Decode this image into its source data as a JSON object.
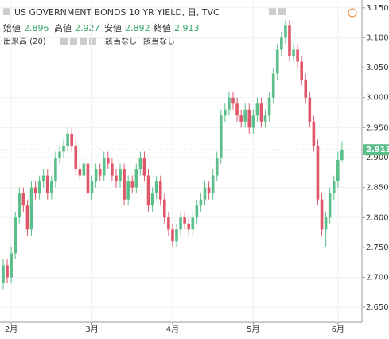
{
  "chart_data": {
    "type": "candlestick",
    "title": "US GOVERNMENT BONDS 10 YR YIELD, 日, TVC",
    "ohlc_labels": {
      "open": "始値",
      "high": "高値",
      "low": "安値",
      "close": "終値"
    },
    "volume_label": "出来高 (20)",
    "na_labels": [
      "該当なし",
      "該当なし"
    ],
    "up_color": "#5cbf8a",
    "down_color": "#e0576a",
    "open": [
      2.69,
      2.72,
      2.7,
      2.74,
      2.8,
      2.84,
      2.82,
      2.78,
      2.85,
      2.84,
      2.86,
      2.87,
      2.84,
      2.86,
      2.9,
      2.91,
      2.92,
      2.94,
      2.92,
      2.88,
      2.87,
      2.89,
      2.84,
      2.86,
      2.88,
      2.87,
      2.9,
      2.89,
      2.87,
      2.86,
      2.88,
      2.83,
      2.86,
      2.85,
      2.88,
      2.9,
      2.87,
      2.82,
      2.84,
      2.86,
      2.83,
      2.8,
      2.78,
      2.76,
      2.78,
      2.8,
      2.79,
      2.78,
      2.8,
      2.82,
      2.83,
      2.85,
      2.84,
      2.87,
      2.9,
      2.97,
      2.98,
      3.0,
      2.99,
      2.97,
      2.96,
      2.98,
      2.95,
      2.97,
      2.99,
      2.96,
      2.97,
      3.0,
      3.04,
      3.08,
      3.1,
      3.12,
      3.07,
      3.08,
      3.06,
      3.03,
      3.0,
      2.96,
      2.92,
      2.83,
      2.78,
      2.8,
      2.84,
      2.86,
      2.896
    ],
    "high": [
      2.73,
      2.73,
      2.75,
      2.81,
      2.85,
      2.85,
      2.83,
      2.86,
      2.86,
      2.87,
      2.88,
      2.88,
      2.87,
      2.91,
      2.92,
      2.93,
      2.95,
      2.95,
      2.93,
      2.89,
      2.9,
      2.9,
      2.87,
      2.89,
      2.89,
      2.91,
      2.91,
      2.9,
      2.88,
      2.89,
      2.89,
      2.87,
      2.87,
      2.89,
      2.91,
      2.91,
      2.88,
      2.85,
      2.87,
      2.87,
      2.84,
      2.81,
      2.79,
      2.79,
      2.81,
      2.81,
      2.8,
      2.81,
      2.83,
      2.84,
      2.86,
      2.86,
      2.88,
      2.91,
      2.98,
      2.99,
      3.01,
      3.01,
      3.0,
      2.98,
      2.99,
      2.99,
      2.98,
      3.0,
      3.0,
      2.98,
      3.01,
      3.05,
      3.09,
      3.11,
      3.13,
      3.13,
      3.09,
      3.09,
      3.07,
      3.04,
      3.01,
      2.97,
      2.93,
      2.84,
      2.81,
      2.85,
      2.87,
      2.91,
      2.927
    ],
    "low": [
      2.68,
      2.69,
      2.69,
      2.73,
      2.79,
      2.81,
      2.77,
      2.77,
      2.83,
      2.83,
      2.85,
      2.83,
      2.83,
      2.85,
      2.89,
      2.9,
      2.91,
      2.91,
      2.87,
      2.86,
      2.86,
      2.83,
      2.83,
      2.85,
      2.86,
      2.86,
      2.88,
      2.86,
      2.85,
      2.85,
      2.82,
      2.82,
      2.84,
      2.84,
      2.87,
      2.86,
      2.81,
      2.81,
      2.83,
      2.82,
      2.79,
      2.77,
      2.75,
      2.75,
      2.77,
      2.78,
      2.77,
      2.77,
      2.79,
      2.81,
      2.82,
      2.83,
      2.83,
      2.86,
      2.89,
      2.96,
      2.97,
      2.98,
      2.96,
      2.95,
      2.95,
      2.94,
      2.94,
      2.96,
      2.95,
      2.95,
      2.96,
      2.99,
      3.03,
      3.07,
      3.09,
      3.06,
      3.06,
      3.05,
      3.02,
      2.99,
      2.95,
      2.91,
      2.82,
      2.77,
      2.75,
      2.79,
      2.83,
      2.85,
      2.892
    ],
    "close": [
      2.72,
      2.7,
      2.74,
      2.8,
      2.84,
      2.82,
      2.78,
      2.85,
      2.84,
      2.86,
      2.87,
      2.84,
      2.86,
      2.9,
      2.91,
      2.92,
      2.94,
      2.92,
      2.88,
      2.87,
      2.89,
      2.84,
      2.86,
      2.88,
      2.87,
      2.9,
      2.89,
      2.87,
      2.86,
      2.88,
      2.83,
      2.86,
      2.85,
      2.88,
      2.9,
      2.87,
      2.82,
      2.84,
      2.86,
      2.83,
      2.8,
      2.78,
      2.76,
      2.78,
      2.8,
      2.79,
      2.78,
      2.8,
      2.82,
      2.83,
      2.85,
      2.84,
      2.87,
      2.9,
      2.97,
      2.98,
      3.0,
      2.99,
      2.97,
      2.96,
      2.98,
      2.95,
      2.97,
      2.99,
      2.96,
      2.97,
      3.0,
      3.04,
      3.08,
      3.1,
      3.12,
      3.07,
      3.08,
      3.06,
      3.03,
      3.0,
      2.96,
      2.92,
      2.83,
      2.78,
      2.8,
      2.84,
      2.86,
      2.896,
      2.913
    ],
    "ylim": [
      2.625,
      3.163
    ],
    "yticks": [
      {
        "value": 2.65,
        "label": "2.650"
      },
      {
        "value": 2.7,
        "label": "2.700"
      },
      {
        "value": 2.75,
        "label": "2.750"
      },
      {
        "value": 2.8,
        "label": "2.800"
      },
      {
        "value": 2.85,
        "label": "2.850"
      },
      {
        "value": 2.9,
        "label": "2.900"
      },
      {
        "value": 2.95,
        "label": "2.950"
      },
      {
        "value": 3.0,
        "label": "3.000"
      },
      {
        "value": 3.05,
        "label": "3.050"
      },
      {
        "value": 3.1,
        "label": "3.100"
      },
      {
        "value": 3.15,
        "label": "3.150"
      }
    ],
    "xticks": [
      {
        "value": 2,
        "label": "2月"
      },
      {
        "value": 22,
        "label": "3月"
      },
      {
        "value": 42,
        "label": "4月"
      },
      {
        "value": 62,
        "label": "5月"
      },
      {
        "value": 83,
        "label": "6月"
      }
    ],
    "grid": true
  }
}
